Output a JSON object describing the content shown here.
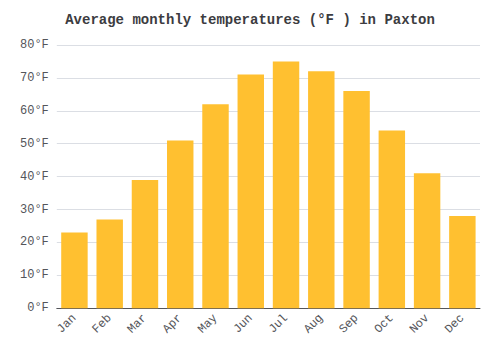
{
  "chart_data": {
    "type": "bar",
    "title": "Average monthly temperatures (°F ) in Paxton",
    "categories": [
      "Jan",
      "Feb",
      "Mar",
      "Apr",
      "May",
      "Jun",
      "Jul",
      "Aug",
      "Sep",
      "Oct",
      "Nov",
      "Dec"
    ],
    "values": [
      23,
      27,
      39,
      51,
      62,
      71,
      75,
      72,
      66,
      54,
      41,
      28
    ],
    "color": "#FFC030",
    "ylim": [
      0,
      80
    ],
    "yticks": [
      {
        "value": 0,
        "label": "0°F"
      },
      {
        "value": 10,
        "label": "10°F"
      },
      {
        "value": 20,
        "label": "20°F"
      },
      {
        "value": 30,
        "label": "30°F"
      },
      {
        "value": 40,
        "label": "40°F"
      },
      {
        "value": 50,
        "label": "50°F"
      },
      {
        "value": 60,
        "label": "60°F"
      },
      {
        "value": 70,
        "label": "70°F"
      },
      {
        "value": 80,
        "label": "80°F"
      }
    ],
    "grid": true
  }
}
